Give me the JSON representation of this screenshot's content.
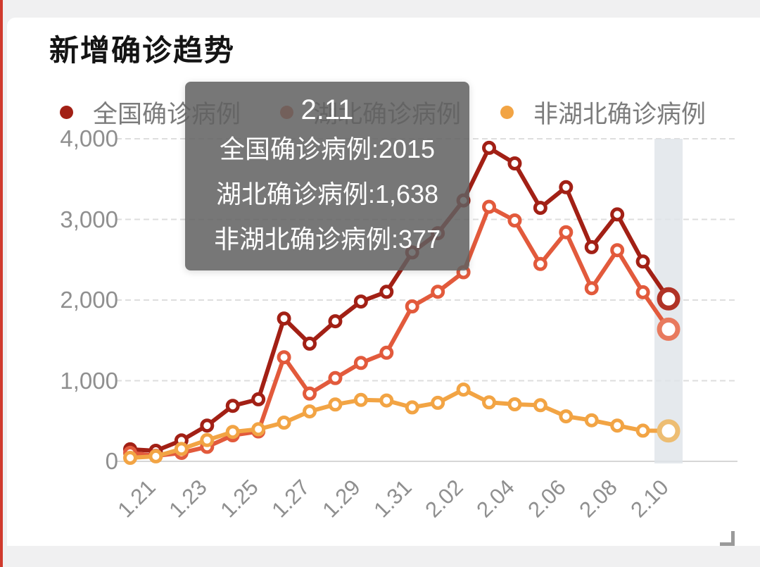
{
  "title": "新增确诊趋势",
  "legend": {
    "items": [
      {
        "label": "全国确诊病例",
        "color": "#a22015"
      },
      {
        "label": "湖北确诊病例",
        "color": "#e25a3c"
      },
      {
        "label": "非湖北确诊病例",
        "color": "#f2a444"
      }
    ]
  },
  "tooltip": {
    "title": "2.11",
    "rows": [
      {
        "text": "全国确诊病例:2015"
      },
      {
        "text": "湖北确诊病例:1,638"
      },
      {
        "text": "非湖北确诊病例:377"
      }
    ],
    "bg": "rgba(97,97,97,0.86)"
  },
  "chart_data": {
    "type": "line",
    "title": "新增确诊趋势",
    "x": [
      "1.21",
      "1.22",
      "1.23",
      "1.24",
      "1.25",
      "1.26",
      "1.27",
      "1.28",
      "1.29",
      "1.30",
      "1.31",
      "2.01",
      "2.02",
      "2.03",
      "2.04",
      "2.05",
      "2.06",
      "2.07",
      "2.08",
      "2.09",
      "2.10",
      "2.11"
    ],
    "xtick_labels": [
      "1.21",
      "1.23",
      "1.25",
      "1.27",
      "1.29",
      "1.31",
      "2.02",
      "2.04",
      "2.06",
      "2.08",
      "2.10"
    ],
    "yticks": [
      0,
      1000,
      2000,
      3000,
      4000
    ],
    "ytick_labels": [
      "0",
      "1,000",
      "2,000",
      "3,000",
      "4,000"
    ],
    "ylim": [
      0,
      4000
    ],
    "grid": "horizontal dashed",
    "legend_position": "top",
    "highlighted_x": "2.11",
    "highlight_band_color": "#dfe4e8",
    "series": [
      {
        "name": "全国确诊病例",
        "color": "#a22015",
        "end_ring_color": "#b03326",
        "values": [
          149,
          131,
          259,
          444,
          688,
          769,
          1771,
          1459,
          1737,
          1982,
          2102,
          2590,
          2829,
          3235,
          3887,
          3694,
          3143,
          3399,
          2656,
          3062,
          2478,
          2015
        ]
      },
      {
        "name": "湖北确诊病例",
        "color": "#e25a3c",
        "end_ring_color": "#e87a5e",
        "values": [
          105,
          69,
          105,
          180,
          323,
          371,
          1291,
          840,
          1032,
          1220,
          1347,
          1921,
          2103,
          2345,
          3156,
          2987,
          2447,
          2841,
          2147,
          2618,
          2097,
          1638
        ]
      },
      {
        "name": "非湖北确诊病例",
        "color": "#f2a444",
        "end_ring_color": "#edbd72",
        "values": [
          44,
          62,
          154,
          264,
          365,
          398,
          480,
          619,
          705,
          762,
          755,
          669,
          726,
          890,
          731,
          707,
          696,
          558,
          509,
          444,
          381,
          377
        ]
      }
    ]
  }
}
